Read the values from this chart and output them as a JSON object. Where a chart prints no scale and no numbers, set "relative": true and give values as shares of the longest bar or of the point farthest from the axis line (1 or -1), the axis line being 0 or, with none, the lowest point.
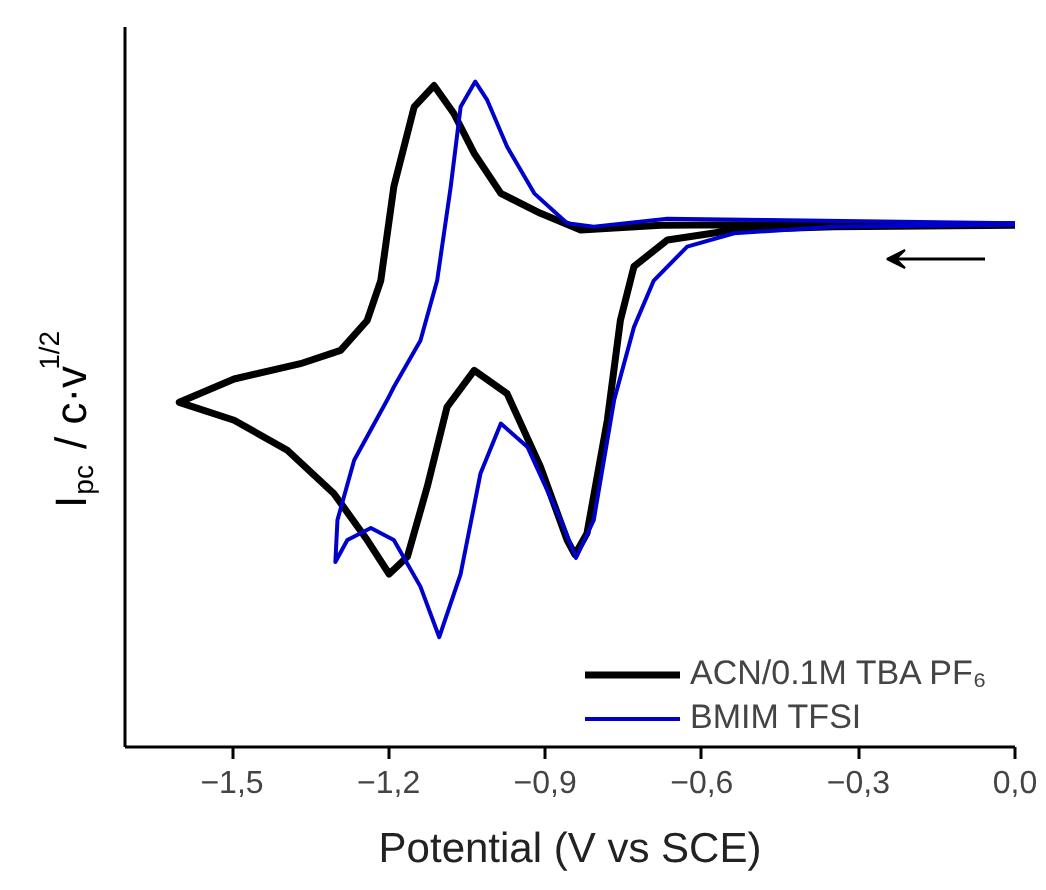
{
  "chart_data": {
    "type": "line",
    "relative": true,
    "xlabel": "Potential (V vs SCE)",
    "ylabel": "I$_{pc}$ / c·v$^{1/2}$",
    "xlim": [
      -1.705,
      0.0
    ],
    "xticks": [
      {
        "value": -1.5,
        "label": "−1,5"
      },
      {
        "value": -1.2,
        "label": "−1,2"
      },
      {
        "value": -0.9,
        "label": "−0,9"
      },
      {
        "value": -0.6,
        "label": "−0,6"
      },
      {
        "value": -0.3,
        "label": "−0,3"
      },
      {
        "value": 0.0,
        "label": "0,0"
      }
    ],
    "legend": "bottom right",
    "grid": false,
    "line_style": "solid",
    "series": [
      {
        "name": "ACN/0.1M TBA PF₆",
        "color": "#000000",
        "x": [
          0.0,
          -0.347,
          -0.538,
          -0.679,
          -0.832,
          -0.909,
          -0.985,
          -1.036,
          -1.075,
          -1.113,
          -1.151,
          -1.19,
          -1.215,
          -1.241,
          -1.292,
          -1.369,
          -1.496,
          -1.601,
          -1.496,
          -1.394,
          -1.305,
          -1.241,
          -1.199,
          -1.164,
          -1.126,
          -1.088,
          -1.036,
          -0.973,
          -0.909,
          -0.858,
          -0.843,
          -0.82,
          -0.781,
          -0.756,
          -0.73,
          -0.666,
          -0.538,
          -0.347,
          0.0
        ],
        "values": [
          0.785,
          0.785,
          0.785,
          0.784,
          0.777,
          0.802,
          0.832,
          0.892,
          0.952,
          0.994,
          0.962,
          0.842,
          0.701,
          0.641,
          0.596,
          0.576,
          0.553,
          0.518,
          0.491,
          0.446,
          0.381,
          0.311,
          0.26,
          0.286,
          0.391,
          0.511,
          0.566,
          0.531,
          0.421,
          0.311,
          0.289,
          0.321,
          0.491,
          0.641,
          0.722,
          0.762,
          0.777,
          0.782,
          0.784
        ]
      },
      {
        "name": "BMIM TFSI",
        "color": "#0000cc",
        "x": [
          0.0,
          -0.475,
          -0.666,
          -0.807,
          -0.858,
          -0.921,
          -0.973,
          -1.011,
          -1.034,
          -1.062,
          -1.081,
          -1.107,
          -1.139,
          -1.19,
          -1.203,
          -1.266,
          -1.298,
          -1.302,
          -1.279,
          -1.234,
          -1.19,
          -1.139,
          -1.103,
          -1.062,
          -1.024,
          -0.985,
          -0.934,
          -0.87,
          -0.841,
          -0.807,
          -0.768,
          -0.73,
          -0.692,
          -0.628,
          -0.538,
          -0.347,
          0.0
        ],
        "values": [
          0.787,
          0.792,
          0.794,
          0.782,
          0.787,
          0.832,
          0.902,
          0.972,
          1.0,
          0.962,
          0.842,
          0.701,
          0.611,
          0.541,
          0.521,
          0.431,
          0.341,
          0.278,
          0.311,
          0.329,
          0.311,
          0.241,
          0.165,
          0.26,
          0.411,
          0.486,
          0.451,
          0.341,
          0.284,
          0.341,
          0.521,
          0.631,
          0.701,
          0.752,
          0.772,
          0.782,
          0.785
        ]
      }
    ]
  }
}
